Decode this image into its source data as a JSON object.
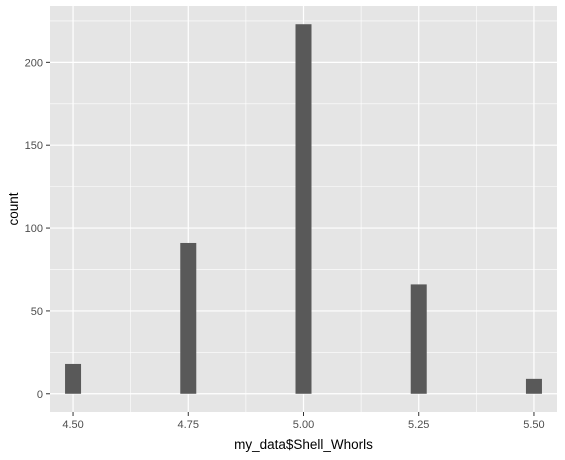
{
  "chart_data": {
    "type": "bar",
    "title": "",
    "xlabel": "my_data$Shell_Whorls",
    "ylabel": "count",
    "x": [
      4.5,
      4.75,
      5.0,
      5.25,
      5.5
    ],
    "values": [
      18,
      91,
      223,
      66,
      9
    ],
    "xlim": [
      4.45,
      5.55
    ],
    "ylim": [
      -11,
      234
    ],
    "x_ticks": [
      4.5,
      4.75,
      5.0,
      5.25,
      5.5
    ],
    "x_tick_labels": [
      "4.50",
      "4.75",
      "5.00",
      "5.25",
      "5.50"
    ],
    "y_ticks": [
      0,
      50,
      100,
      150,
      200
    ],
    "y_tick_labels": [
      "0",
      "50",
      "100",
      "150",
      "200"
    ],
    "grid": true,
    "legend": "none",
    "colors": {
      "panel_background": "#e5e5e5",
      "grid_major": "#ffffff",
      "bar_fill": "#595959",
      "tick_text": "#4d4d4d",
      "tick_mark": "#333333"
    }
  }
}
